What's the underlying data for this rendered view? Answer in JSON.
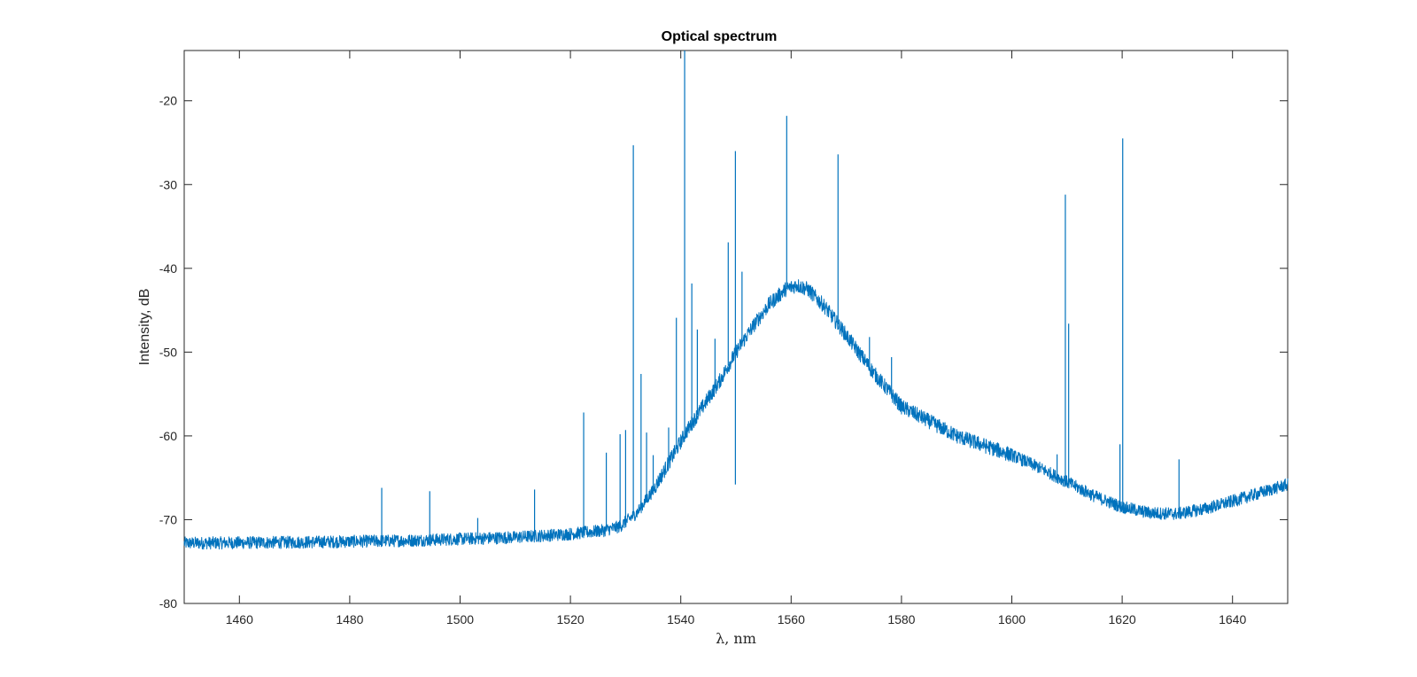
{
  "chart_data": {
    "type": "line",
    "title": "Optical spectrum",
    "xlabel": "λ, nm",
    "ylabel": "Intensity, dB",
    "xlim": [
      1450,
      1650
    ],
    "ylim": [
      -80,
      -14
    ],
    "xticks": [
      1460,
      1480,
      1500,
      1520,
      1540,
      1560,
      1580,
      1600,
      1620,
      1640
    ],
    "yticks": [
      -80,
      -70,
      -60,
      -50,
      -40,
      -30,
      -20
    ],
    "grid": false,
    "color": "#0072BD",
    "series": [
      {
        "baseline_envelope": {
          "x": [
            1450,
            1470,
            1490,
            1510,
            1520,
            1526,
            1529,
            1532,
            1535,
            1538,
            1541,
            1544,
            1547,
            1550,
            1553,
            1556,
            1559,
            1561,
            1563,
            1566,
            1570,
            1575,
            1580,
            1590,
            1600,
            1605,
            1610,
            1615,
            1620,
            1625,
            1630,
            1635,
            1640,
            1645,
            1650
          ],
          "y": [
            -72.8,
            -72.7,
            -72.5,
            -72.1,
            -71.7,
            -71.3,
            -70.8,
            -69.2,
            -66.5,
            -63.0,
            -59.5,
            -56.5,
            -53.5,
            -50.0,
            -47.0,
            -44.3,
            -42.5,
            -42.0,
            -42.5,
            -44.5,
            -48.0,
            -52.5,
            -56.5,
            -60.0,
            -62.3,
            -63.8,
            -65.5,
            -67.2,
            -68.5,
            -69.2,
            -69.3,
            -68.7,
            -67.8,
            -66.8,
            -65.8
          ]
        },
        "spikes": [
          {
            "x": 1485.8,
            "y": -66.2
          },
          {
            "x": 1494.5,
            "y": -66.6
          },
          {
            "x": 1503.2,
            "y": -69.8
          },
          {
            "x": 1513.5,
            "y": -66.4
          },
          {
            "x": 1522.4,
            "y": -57.2
          },
          {
            "x": 1526.5,
            "y": -62.0
          },
          {
            "x": 1529.0,
            "y": -59.8
          },
          {
            "x": 1530.0,
            "y": -59.3
          },
          {
            "x": 1531.4,
            "y": -25.3
          },
          {
            "x": 1532.8,
            "y": -52.6
          },
          {
            "x": 1533.8,
            "y": -59.6
          },
          {
            "x": 1535.0,
            "y": -62.3
          },
          {
            "x": 1537.8,
            "y": -59.0
          },
          {
            "x": 1539.2,
            "y": -45.9
          },
          {
            "x": 1540.7,
            "y": -14.0
          },
          {
            "x": 1542.0,
            "y": -41.8
          },
          {
            "x": 1543.0,
            "y": -47.3
          },
          {
            "x": 1546.2,
            "y": -48.4
          },
          {
            "x": 1548.6,
            "y": -36.9
          },
          {
            "x": 1549.9,
            "y": -26.0
          },
          {
            "x": 1551.1,
            "y": -40.4
          },
          {
            "x": 1559.2,
            "y": -21.8
          },
          {
            "x": 1568.5,
            "y": -26.4
          },
          {
            "x": 1574.2,
            "y": -48.2
          },
          {
            "x": 1578.2,
            "y": -50.6
          },
          {
            "x": 1608.2,
            "y": -62.2
          },
          {
            "x": 1609.7,
            "y": -31.2
          },
          {
            "x": 1610.3,
            "y": -46.6
          },
          {
            "x": 1619.6,
            "y": -61.0
          },
          {
            "x": 1620.1,
            "y": -24.5
          },
          {
            "x": 1630.3,
            "y": -62.8
          }
        ],
        "dips": [
          {
            "x": 1549.9,
            "y": -65.8
          }
        ]
      }
    ]
  }
}
